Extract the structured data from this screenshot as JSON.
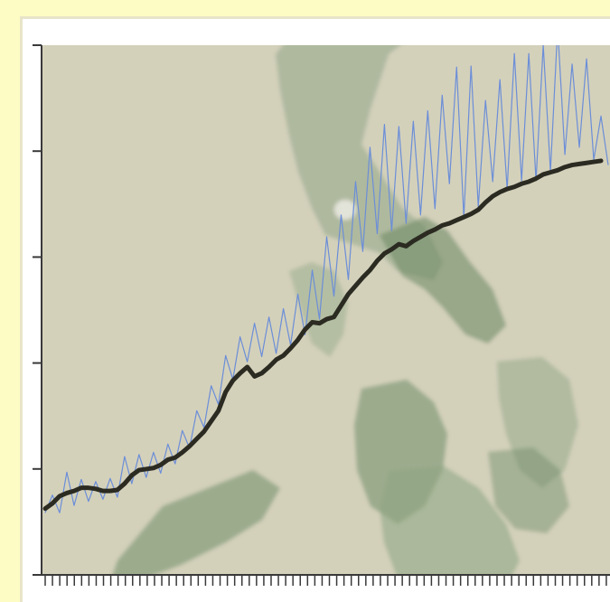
{
  "chart_data": {
    "type": "line",
    "title": "",
    "xlabel": "",
    "ylabel": "",
    "x_tick_labels_visible": false,
    "y_tick_labels_visible": false,
    "y_tick_count": 5,
    "x_tick_count": 78,
    "ylim": [
      0,
      5
    ],
    "xlim": [
      0,
      78
    ],
    "grid": false,
    "legend": "none",
    "colors": {
      "page_background": "#fdfcc4",
      "plot_background": "#d4d1bb",
      "map_land": "#8fa686",
      "map_land_dark": "#6f8c68",
      "axis": "#3a3a3a",
      "series_raw": "#6b8ed8",
      "series_trend": "#2b2b22"
    },
    "series": [
      {
        "role": "raw",
        "x": [
          0,
          1,
          2,
          3,
          4,
          5,
          6,
          7,
          8,
          9,
          10,
          11,
          12,
          13,
          14,
          15,
          16,
          17,
          18,
          19,
          20,
          21,
          22,
          23,
          24,
          25,
          26,
          27,
          28,
          29,
          30,
          31,
          32,
          33,
          34,
          35,
          36,
          37,
          38,
          39,
          40,
          41,
          42,
          43,
          44,
          45,
          46,
          47,
          48,
          49,
          50,
          51,
          52,
          53,
          54,
          55,
          56,
          57,
          58,
          59,
          60,
          61,
          62,
          63,
          64,
          65,
          66,
          67,
          68,
          69,
          70,
          71,
          72,
          73,
          74,
          75,
          76,
          77,
          78
        ],
        "values": [
          0.44,
          0.61,
          0.44,
          0.83,
          0.51,
          0.76,
          0.55,
          0.74,
          0.57,
          0.77,
          0.59,
          0.98,
          0.72,
          1.0,
          0.78,
          1.02,
          0.82,
          1.1,
          0.91,
          1.23,
          1.06,
          1.42,
          1.26,
          1.66,
          1.48,
          1.95,
          1.72,
          2.13,
          1.89,
          2.26,
          1.94,
          2.32,
          1.97,
          2.4,
          2.05,
          2.54,
          2.15,
          2.77,
          2.3,
          3.09,
          2.52,
          3.3,
          2.68,
          3.62,
          2.95,
          3.95,
          3.12,
          4.17,
          3.15,
          4.15,
          3.22,
          4.2,
          3.3,
          4.3,
          3.36,
          4.45,
          3.6,
          4.72,
          3.28,
          4.73,
          3.38,
          4.4,
          3.62,
          4.6,
          3.55,
          4.85,
          3.63,
          4.85,
          3.63,
          4.93,
          3.72,
          5.1,
          3.88,
          4.75,
          3.95,
          4.8,
          3.83,
          4.25,
          3.78
        ]
      },
      {
        "role": "trend",
        "x": [
          0,
          1,
          2,
          3,
          4,
          5,
          6,
          7,
          8,
          9,
          10,
          11,
          12,
          13,
          14,
          15,
          16,
          17,
          18,
          19,
          20,
          21,
          22,
          23,
          24,
          25,
          26,
          27,
          28,
          29,
          30,
          31,
          32,
          33,
          34,
          35,
          36,
          37,
          38,
          39,
          40,
          41,
          42,
          43,
          44,
          45,
          46,
          47,
          48,
          49,
          50,
          51,
          52,
          53,
          54,
          55,
          56,
          57,
          58,
          59,
          60,
          61,
          62,
          63,
          64,
          65,
          66,
          67,
          68,
          69,
          70,
          71,
          72,
          73,
          74,
          75,
          76,
          77
        ],
        "values": [
          0.48,
          0.53,
          0.6,
          0.63,
          0.65,
          0.68,
          0.68,
          0.67,
          0.65,
          0.65,
          0.66,
          0.72,
          0.8,
          0.85,
          0.86,
          0.87,
          0.9,
          0.95,
          0.97,
          1.02,
          1.08,
          1.15,
          1.22,
          1.32,
          1.42,
          1.6,
          1.71,
          1.78,
          1.84,
          1.75,
          1.78,
          1.84,
          1.91,
          1.95,
          2.02,
          2.1,
          2.2,
          2.27,
          2.26,
          2.3,
          2.32,
          2.43,
          2.54,
          2.62,
          2.7,
          2.77,
          2.86,
          2.93,
          2.97,
          3.02,
          3.0,
          3.05,
          3.09,
          3.13,
          3.16,
          3.2,
          3.22,
          3.25,
          3.28,
          3.31,
          3.35,
          3.42,
          3.48,
          3.52,
          3.55,
          3.57,
          3.6,
          3.62,
          3.65,
          3.69,
          3.71,
          3.73,
          3.76,
          3.78,
          3.79,
          3.8,
          3.81,
          3.82
        ]
      }
    ]
  }
}
